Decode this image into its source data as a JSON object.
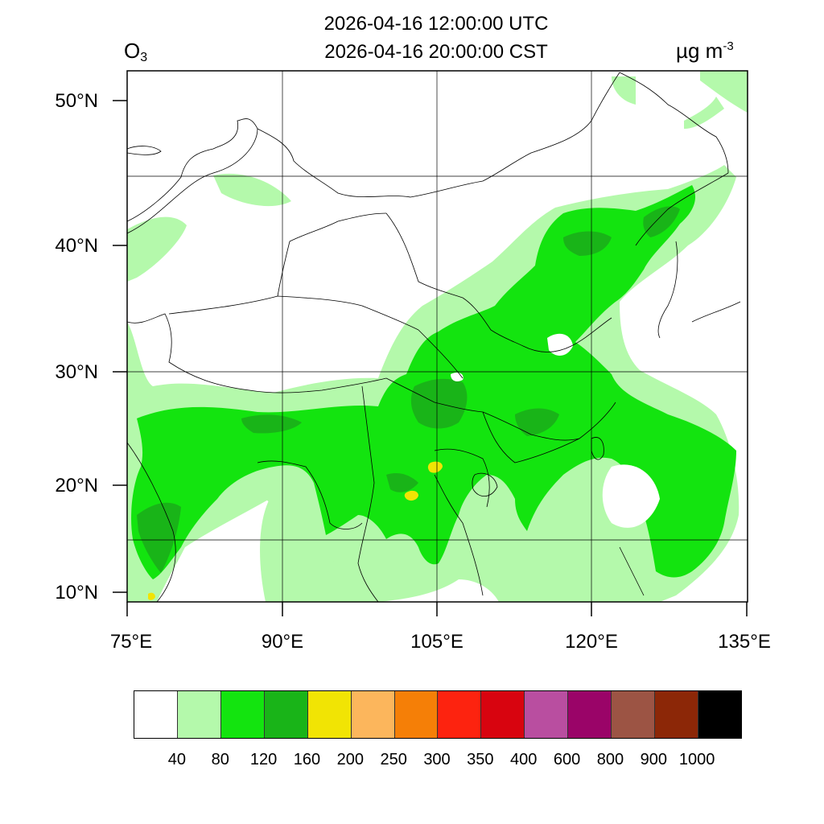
{
  "header": {
    "time_utc": "2026-04-16 12:00:00 UTC",
    "time_local": "2026-04-16 20:00:00 CST",
    "variable_main": "O",
    "variable_sub": "3",
    "unit_main": "µg m",
    "unit_exp": "-3"
  },
  "map": {
    "lon_range": [
      75,
      135
    ],
    "lat_range": [
      9,
      53
    ],
    "lat_ticks": [
      {
        "value": 50,
        "label": "50°N"
      },
      {
        "value": 40,
        "label": "40°N"
      },
      {
        "value": 30,
        "label": "30°N"
      },
      {
        "value": 20,
        "label": "20°N"
      },
      {
        "value": 10,
        "label": "10°N"
      }
    ],
    "lon_ticks": [
      {
        "value": 75,
        "label": "75°E"
      },
      {
        "value": 90,
        "label": "90°E"
      },
      {
        "value": 105,
        "label": "105°E"
      },
      {
        "value": 120,
        "label": "120°E"
      },
      {
        "value": 135,
        "label": "135°E"
      }
    ],
    "grid": true,
    "field_colors": {
      "level_40_80": "#b4f9ab",
      "level_80_120": "#13e40f",
      "level_120_160": "#19b418",
      "level_160_200": "#f1e404"
    }
  },
  "legend": {
    "colors": [
      "#ffffff",
      "#b4f9ab",
      "#13e40f",
      "#19b418",
      "#f1e404",
      "#fcb65c",
      "#f57f07",
      "#fd230f",
      "#d8040f",
      "#b94ea0",
      "#9a0468",
      "#9c5444",
      "#8c2707",
      "#000000"
    ],
    "labels": [
      "40",
      "80",
      "120",
      "160",
      "200",
      "250",
      "300",
      "350",
      "400",
      "600",
      "800",
      "900",
      "1000"
    ]
  }
}
